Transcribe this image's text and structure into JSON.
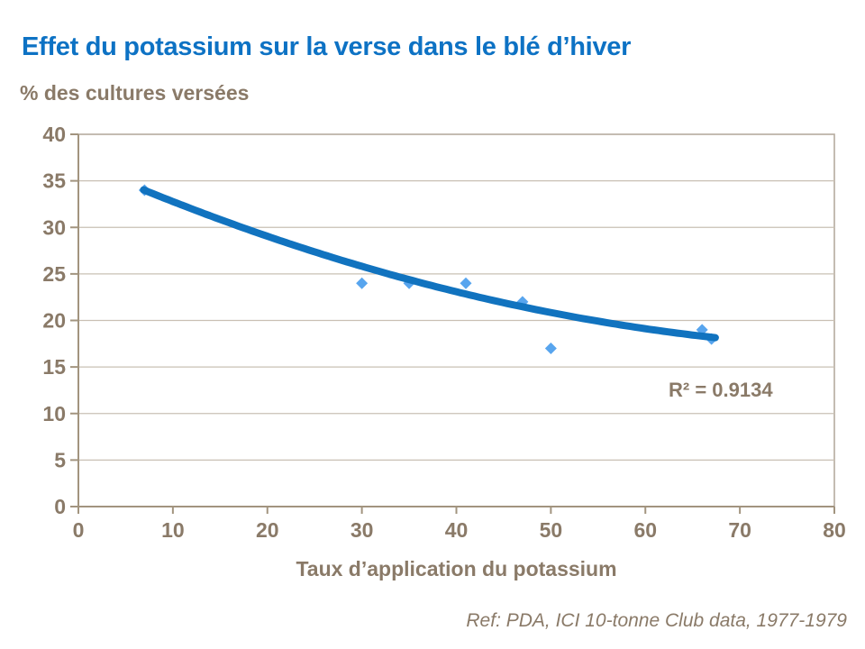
{
  "title": "Effet du potassium sur la verse dans le blé d’hiver",
  "y_axis_title": "% des cultures versées",
  "x_axis_title": "Taux d’application du potassium",
  "footer": "Ref: PDA, ICI 10-tonne Club data, 1977-1979",
  "colors": {
    "title_blue": "#0d72c4",
    "text_taupe": "#8a7a68",
    "gridline": "#c9c0b4",
    "plot_border": "#b6ac9f",
    "axis_line": "#a2947f",
    "trend_line": "#1173bf",
    "marker": "#58a5ee"
  },
  "chart_data": {
    "type": "scatter",
    "title": "Effet du potassium sur la verse dans le blé d’hiver",
    "xlabel": "Taux d’application du potassium",
    "ylabel": "% des cultures versées",
    "points": [
      {
        "x": 7,
        "y": 34
      },
      {
        "x": 30,
        "y": 24
      },
      {
        "x": 35,
        "y": 24
      },
      {
        "x": 41,
        "y": 24
      },
      {
        "x": 47,
        "y": 22
      },
      {
        "x": 50,
        "y": 17
      },
      {
        "x": 66,
        "y": 19
      },
      {
        "x": 67,
        "y": 18
      }
    ],
    "xlim": [
      0,
      80
    ],
    "ylim": [
      0,
      40
    ],
    "x_ticks": [
      0,
      10,
      20,
      30,
      40,
      50,
      60,
      70,
      80
    ],
    "y_ticks": [
      0,
      5,
      10,
      15,
      20,
      25,
      30,
      35,
      40
    ],
    "grid": "horizontal",
    "legend": "none",
    "trendline": {
      "type": "quadratic",
      "coefficients": [
        37.0,
        -0.4475,
        0.00249
      ],
      "x_start": 6.9,
      "x_end": 67.5,
      "r2_label": "R² = 0.9134"
    }
  }
}
